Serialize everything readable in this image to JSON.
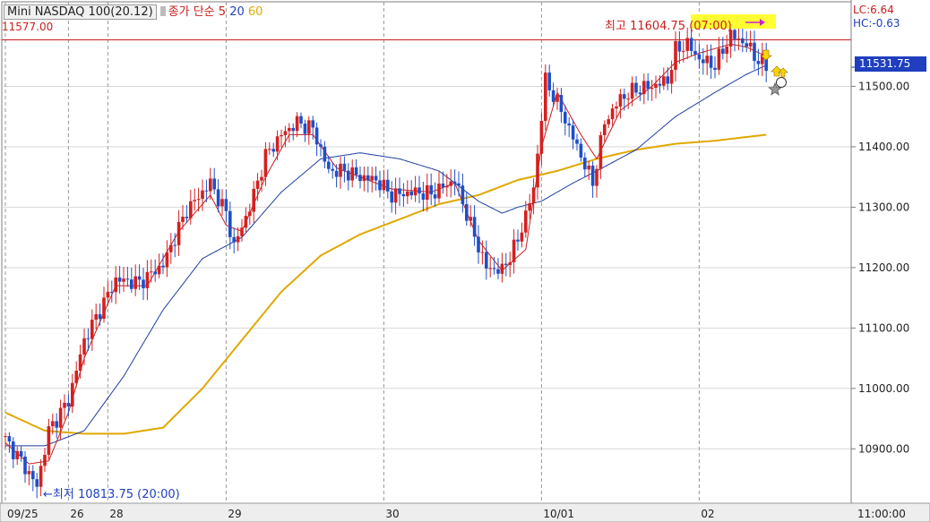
{
  "header": {
    "symbol": "Mini NASDAQ 100(20.12)",
    "ma_label": "종가 단순",
    "ma_periods": [
      "5",
      "20",
      "60"
    ]
  },
  "level_line": {
    "value": 11577.0,
    "label": "11577.00",
    "color": "#c81e1e"
  },
  "indicators": {
    "lc": "LC:6.64",
    "hc": "HC:-0.63"
  },
  "current_price": {
    "value": 11531.75,
    "label": "11531.75",
    "color": "#1f3fbf"
  },
  "annotations": {
    "high": {
      "label": "최고 11604.75 (07:00)",
      "value": 11604.75
    },
    "low": {
      "label": "최저 10813.75 (20:00)",
      "value": 10813.75
    }
  },
  "colors": {
    "up": "#d42020",
    "down": "#1f4fc8",
    "ma5": "#c81e1e",
    "ma20": "#1f3f9f",
    "ma60": "#e0a800",
    "grid": "#999999"
  },
  "chart_data": {
    "type": "candlestick",
    "x_labels": [
      {
        "label": "09/25",
        "index": 0
      },
      {
        "label": "26",
        "index": 16
      },
      {
        "label": "28",
        "index": 26
      },
      {
        "label": "29",
        "index": 56
      },
      {
        "label": "30",
        "index": 96
      },
      {
        "label": "10/01",
        "index": 136
      },
      {
        "label": "02",
        "index": 176
      },
      {
        "label": "11:00:00",
        "index": 214
      }
    ],
    "y_axis": {
      "min": 10810,
      "max": 11640,
      "ticks": [
        10900,
        11000,
        11100,
        11200,
        11300,
        11400,
        11500
      ]
    },
    "y_tick_labels": [
      "10900.00",
      "11000.00",
      "11100.00",
      "11200.00",
      "11300.00",
      "11400.00",
      "11500.00"
    ],
    "x_count": 214,
    "close_path": [
      [
        0,
        10915
      ],
      [
        4,
        10880
      ],
      [
        8,
        10838
      ],
      [
        11,
        10930
      ],
      [
        16,
        10980
      ],
      [
        20,
        11080
      ],
      [
        24,
        11130
      ],
      [
        28,
        11180
      ],
      [
        34,
        11175
      ],
      [
        40,
        11205
      ],
      [
        46,
        11295
      ],
      [
        52,
        11340
      ],
      [
        56,
        11290
      ],
      [
        58,
        11235
      ],
      [
        62,
        11300
      ],
      [
        66,
        11385
      ],
      [
        70,
        11420
      ],
      [
        74,
        11440
      ],
      [
        78,
        11430
      ],
      [
        82,
        11360
      ],
      [
        86,
        11360
      ],
      [
        90,
        11350
      ],
      [
        94,
        11345
      ],
      [
        98,
        11320
      ],
      [
        104,
        11325
      ],
      [
        108,
        11322
      ],
      [
        114,
        11345
      ],
      [
        118,
        11270
      ],
      [
        122,
        11200
      ],
      [
        126,
        11195
      ],
      [
        130,
        11245
      ],
      [
        134,
        11330
      ],
      [
        137,
        11510
      ],
      [
        141,
        11460
      ],
      [
        145,
        11400
      ],
      [
        149,
        11340
      ],
      [
        152,
        11440
      ],
      [
        156,
        11480
      ],
      [
        160,
        11495
      ],
      [
        164,
        11500
      ],
      [
        168,
        11510
      ],
      [
        170,
        11560
      ],
      [
        173,
        11570
      ],
      [
        176,
        11545
      ],
      [
        180,
        11535
      ],
      [
        184,
        11585
      ],
      [
        188,
        11570
      ],
      [
        190,
        11550
      ],
      [
        193,
        11531.75
      ]
    ],
    "ma60_path": [
      [
        0,
        10960
      ],
      [
        10,
        10930
      ],
      [
        20,
        10925
      ],
      [
        30,
        10925
      ],
      [
        40,
        10935
      ],
      [
        50,
        11000
      ],
      [
        60,
        11080
      ],
      [
        70,
        11160
      ],
      [
        80,
        11220
      ],
      [
        90,
        11255
      ],
      [
        100,
        11280
      ],
      [
        110,
        11305
      ],
      [
        120,
        11320
      ],
      [
        130,
        11345
      ],
      [
        140,
        11360
      ],
      [
        150,
        11380
      ],
      [
        160,
        11395
      ],
      [
        170,
        11405
      ],
      [
        180,
        11410
      ],
      [
        193,
        11420
      ]
    ],
    "ma20_path": [
      [
        0,
        10905
      ],
      [
        10,
        10905
      ],
      [
        20,
        10930
      ],
      [
        30,
        11020
      ],
      [
        40,
        11130
      ],
      [
        50,
        11215
      ],
      [
        60,
        11250
      ],
      [
        70,
        11325
      ],
      [
        80,
        11380
      ],
      [
        90,
        11390
      ],
      [
        100,
        11380
      ],
      [
        110,
        11360
      ],
      [
        120,
        11310
      ],
      [
        126,
        11290
      ],
      [
        130,
        11300
      ],
      [
        136,
        11310
      ],
      [
        144,
        11340
      ],
      [
        150,
        11360
      ],
      [
        160,
        11395
      ],
      [
        170,
        11450
      ],
      [
        180,
        11490
      ],
      [
        188,
        11520
      ],
      [
        193,
        11535
      ]
    ],
    "ma5_path": [
      [
        0,
        10910
      ],
      [
        6,
        10875
      ],
      [
        11,
        10880
      ],
      [
        16,
        10960
      ],
      [
        20,
        11050
      ],
      [
        24,
        11110
      ],
      [
        28,
        11170
      ],
      [
        36,
        11170
      ],
      [
        44,
        11260
      ],
      [
        52,
        11320
      ],
      [
        56,
        11270
      ],
      [
        60,
        11260
      ],
      [
        66,
        11350
      ],
      [
        72,
        11420
      ],
      [
        78,
        11420
      ],
      [
        84,
        11365
      ],
      [
        90,
        11350
      ],
      [
        98,
        11330
      ],
      [
        108,
        11325
      ],
      [
        114,
        11340
      ],
      [
        120,
        11245
      ],
      [
        126,
        11195
      ],
      [
        132,
        11230
      ],
      [
        136,
        11400
      ],
      [
        140,
        11490
      ],
      [
        146,
        11420
      ],
      [
        150,
        11380
      ],
      [
        156,
        11460
      ],
      [
        164,
        11500
      ],
      [
        170,
        11540
      ],
      [
        176,
        11555
      ],
      [
        184,
        11570
      ],
      [
        188,
        11565
      ],
      [
        193,
        11550
      ]
    ]
  }
}
